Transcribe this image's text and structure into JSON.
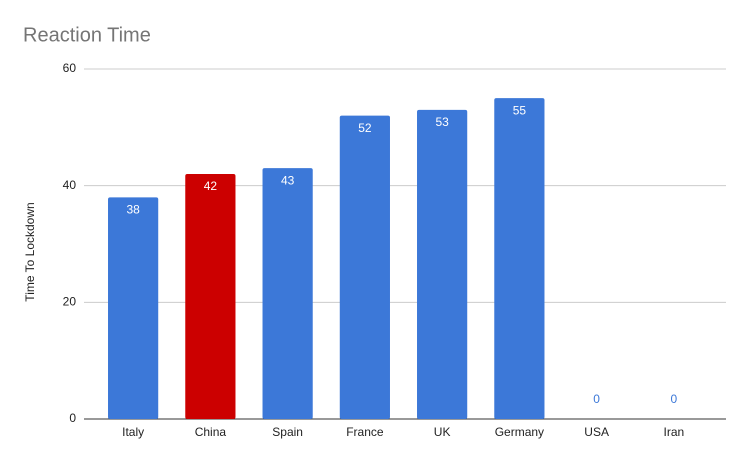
{
  "chart_data": {
    "type": "bar",
    "title": "Reaction Time",
    "y_label": "Time To Lockdown",
    "categories": [
      "Italy",
      "China",
      "Spain",
      "France",
      "UK",
      "Germany",
      "USA",
      "Iran"
    ],
    "values": [
      38,
      42,
      43,
      52,
      53,
      55,
      0,
      0
    ],
    "colors": [
      "#3c78d8",
      "#cc0000",
      "#3c78d8",
      "#3c78d8",
      "#3c78d8",
      "#3c78d8",
      "#3c78d8",
      "#3c78d8"
    ],
    "ylim": [
      0,
      60
    ],
    "yticks": [
      0,
      20,
      40,
      60
    ],
    "grid": true,
    "data_labels": true
  }
}
